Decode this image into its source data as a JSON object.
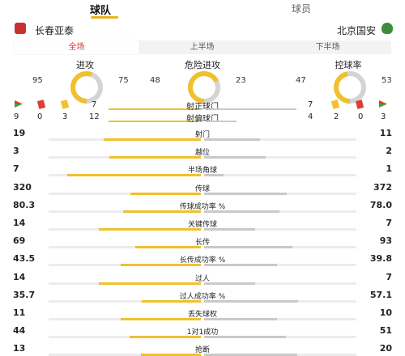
{
  "tabs": {
    "team": "球队",
    "players": "球员"
  },
  "teams": {
    "home": "长春亚泰",
    "away": "北京国安"
  },
  "periods": [
    "全场",
    "上半场",
    "下半场"
  ],
  "donuts": [
    {
      "title": "进攻",
      "home": "95",
      "away": "75"
    },
    {
      "title": "危险进攻",
      "home": "48",
      "away": "23"
    },
    {
      "title": "控球率",
      "home": "47",
      "away": "53"
    }
  ],
  "shots_on": {
    "label": "射正球门",
    "home": "7",
    "away": "7"
  },
  "shots_off": {
    "label": "射偏球门",
    "home": "12",
    "away": "4"
  },
  "home_small": [
    "9",
    "0",
    "3"
  ],
  "away_small": [
    "2",
    "0",
    "3"
  ],
  "stats": [
    {
      "label": "射门",
      "home": "19",
      "away": "11"
    },
    {
      "label": "越位",
      "home": "3",
      "away": "2"
    },
    {
      "label": "半场角球",
      "home": "7",
      "away": "1"
    },
    {
      "label": "传球",
      "home": "320",
      "away": "372"
    },
    {
      "label": "传球成功率 %",
      "home": "80.3",
      "away": "78.0"
    },
    {
      "label": "关键传球",
      "home": "14",
      "away": "7"
    },
    {
      "label": "长传",
      "home": "69",
      "away": "93"
    },
    {
      "label": "长传成功率 %",
      "home": "43.5",
      "away": "39.8"
    },
    {
      "label": "过人",
      "home": "14",
      "away": "7"
    },
    {
      "label": "过人成功率 %",
      "home": "35.7",
      "away": "57.1"
    },
    {
      "label": "丢失球权",
      "home": "11",
      "away": "10"
    },
    {
      "label": "1对1成功",
      "home": "44",
      "away": "51"
    },
    {
      "label": "抢断",
      "home": "13",
      "away": "20"
    }
  ],
  "colors": {
    "home": "#f1c02e",
    "away": "#c9c9c9",
    "accent": "#d33333"
  }
}
